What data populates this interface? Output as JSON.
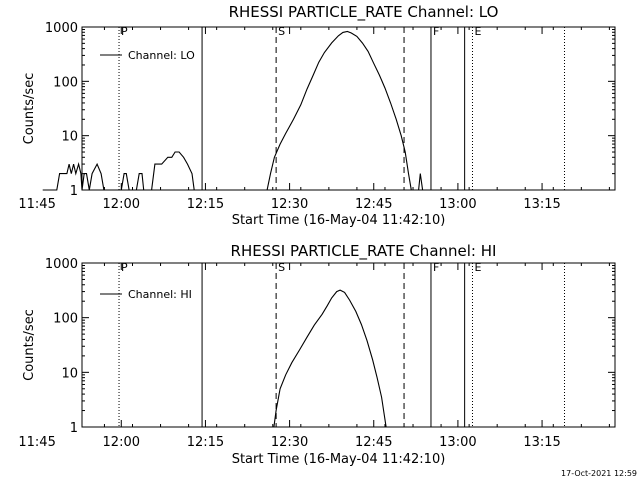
{
  "footer_timestamp": "17-Oct-2021 12:59",
  "chart_data": [
    {
      "type": "line",
      "title": "RHESSI PARTICLE_RATE Channel: LO",
      "xlabel": "Start Time (16-May-04 11:42:10)",
      "ylabel": "Counts/sec",
      "x_range_minutes": [
        11.0,
        106.0
      ],
      "ylim": [
        1,
        1000
      ],
      "yscale": "log",
      "x_tick_minutes": [
        18,
        33,
        48,
        63,
        78,
        93
      ],
      "x_tick_labels": [
        "11:45",
        "12:00",
        "12:15",
        "12:30",
        "12:45",
        "13:00",
        "13:15"
      ],
      "x_tick_all_minutes": [
        3,
        18,
        33,
        48,
        63,
        78,
        93
      ],
      "y_tick_values": [
        1,
        10,
        100,
        1000
      ],
      "y_tick_labels": [
        "1",
        "10",
        "100",
        "1000"
      ],
      "legend": "Channel: LO",
      "markers": [
        {
          "label": "P",
          "time_min": 17.6,
          "style": "dotted"
        },
        {
          "label": "",
          "time_min": 32.4,
          "style": "solid"
        },
        {
          "label": "S",
          "time_min": 45.6,
          "style": "dashed"
        },
        {
          "label": "",
          "time_min": 68.4,
          "style": "dashed"
        },
        {
          "label": "F",
          "time_min": 73.2,
          "style": "solid"
        },
        {
          "label": "",
          "time_min": 79.2,
          "style": "solid"
        },
        {
          "label": "E",
          "time_min": 80.6,
          "style": "dotted"
        },
        {
          "label": "",
          "time_min": 97.0,
          "style": "dotted"
        }
      ],
      "series": [
        {
          "segments": [
            [
              [
                4.0,
                1
              ],
              [
                6.5,
                1
              ],
              [
                7.0,
                2
              ],
              [
                8.3,
                2
              ],
              [
                8.7,
                3
              ],
              [
                9.1,
                2
              ],
              [
                9.5,
                3
              ],
              [
                9.9,
                2
              ],
              [
                10.4,
                3
              ],
              [
                10.8,
                2
              ],
              [
                11.0,
                1
              ],
              [
                11.4,
                2
              ],
              [
                11.8,
                2
              ],
              [
                12.3,
                1
              ],
              [
                12.8,
                2
              ],
              [
                13.7,
                3
              ],
              [
                14.4,
                2
              ],
              [
                14.9,
                1
              ],
              [
                16.0,
                1
              ]
            ],
            [
              [
                17.0,
                1
              ],
              [
                18.0,
                1
              ],
              [
                18.5,
                2
              ],
              [
                18.9,
                2
              ],
              [
                19.4,
                1
              ],
              [
                20.7,
                1
              ],
              [
                21.2,
                2
              ],
              [
                21.7,
                2
              ],
              [
                22.0,
                1
              ]
            ],
            [
              [
                23.4,
                1
              ],
              [
                24.0,
                3
              ],
              [
                25.2,
                3
              ],
              [
                26.3,
                4
              ],
              [
                27.0,
                4
              ],
              [
                27.6,
                5
              ],
              [
                28.3,
                5
              ],
              [
                29.1,
                4
              ],
              [
                29.8,
                3
              ],
              [
                30.6,
                2
              ],
              [
                31.0,
                1
              ]
            ],
            [
              [
                44.0,
                1
              ],
              [
                44.6,
                2
              ],
              [
                45.3,
                4
              ],
              [
                46.3,
                7
              ],
              [
                47.3,
                11
              ],
              [
                48.7,
                20
              ],
              [
                50.0,
                37
              ],
              [
                51.1,
                72
              ],
              [
                52.2,
                130
              ],
              [
                53.2,
                225
              ],
              [
                54.2,
                340
              ],
              [
                55.5,
                510
              ],
              [
                56.7,
                690
              ],
              [
                57.5,
                795
              ],
              [
                58.3,
                825
              ],
              [
                59.0,
                775
              ],
              [
                60.0,
                670
              ],
              [
                61.0,
                505
              ],
              [
                62.0,
                355
              ],
              [
                63.0,
                215
              ],
              [
                64.0,
                130
              ],
              [
                65.0,
                75
              ],
              [
                66.0,
                40
              ],
              [
                67.0,
                20
              ],
              [
                67.9,
                10
              ],
              [
                68.6,
                5
              ],
              [
                69.2,
                2
              ],
              [
                69.7,
                1
              ]
            ],
            [
              [
                71.0,
                1
              ],
              [
                71.3,
                2
              ],
              [
                71.7,
                1
              ]
            ]
          ]
        }
      ]
    },
    {
      "type": "line",
      "title": "RHESSI PARTICLE_RATE Channel: HI",
      "xlabel": "Start Time (16-May-04 11:42:10)",
      "ylabel": "Counts/sec",
      "x_range_minutes": [
        11.0,
        106.0
      ],
      "ylim": [
        1,
        1000
      ],
      "yscale": "log",
      "x_tick_minutes": [
        18,
        33,
        48,
        63,
        78,
        93
      ],
      "x_tick_labels": [
        "11:45",
        "12:00",
        "12:15",
        "12:30",
        "12:45",
        "13:00",
        "13:15"
      ],
      "x_tick_all_minutes": [
        3,
        18,
        33,
        48,
        63,
        78,
        93
      ],
      "y_tick_values": [
        1,
        10,
        100,
        1000
      ],
      "y_tick_labels": [
        "1",
        "10",
        "100",
        "1000"
      ],
      "legend": "Channel: HI",
      "markers": [
        {
          "label": "P",
          "time_min": 17.6,
          "style": "dotted"
        },
        {
          "label": "",
          "time_min": 32.4,
          "style": "solid"
        },
        {
          "label": "S",
          "time_min": 45.6,
          "style": "dashed"
        },
        {
          "label": "",
          "time_min": 68.4,
          "style": "dashed"
        },
        {
          "label": "F",
          "time_min": 73.2,
          "style": "solid"
        },
        {
          "label": "",
          "time_min": 79.2,
          "style": "solid"
        },
        {
          "label": "E",
          "time_min": 80.6,
          "style": "dotted"
        },
        {
          "label": "",
          "time_min": 97.0,
          "style": "dotted"
        }
      ],
      "series": [
        {
          "segments": [
            [
              [
                45.2,
                1
              ],
              [
                45.6,
                2
              ],
              [
                46.3,
                5
              ],
              [
                47.3,
                9
              ],
              [
                48.4,
                15
              ],
              [
                49.8,
                26
              ],
              [
                51.1,
                44
              ],
              [
                52.4,
                73
              ],
              [
                53.8,
                115
              ],
              [
                54.7,
                165
              ],
              [
                55.5,
                230
              ],
              [
                56.4,
                300
              ],
              [
                57.0,
                320
              ],
              [
                57.8,
                290
              ],
              [
                58.7,
                210
              ],
              [
                59.8,
                130
              ],
              [
                60.8,
                75
              ],
              [
                61.8,
                38
              ],
              [
                62.8,
                17
              ],
              [
                63.6,
                8
              ],
              [
                64.4,
                3.5
              ],
              [
                64.9,
                1.6
              ],
              [
                65.2,
                1
              ]
            ]
          ]
        }
      ]
    }
  ]
}
